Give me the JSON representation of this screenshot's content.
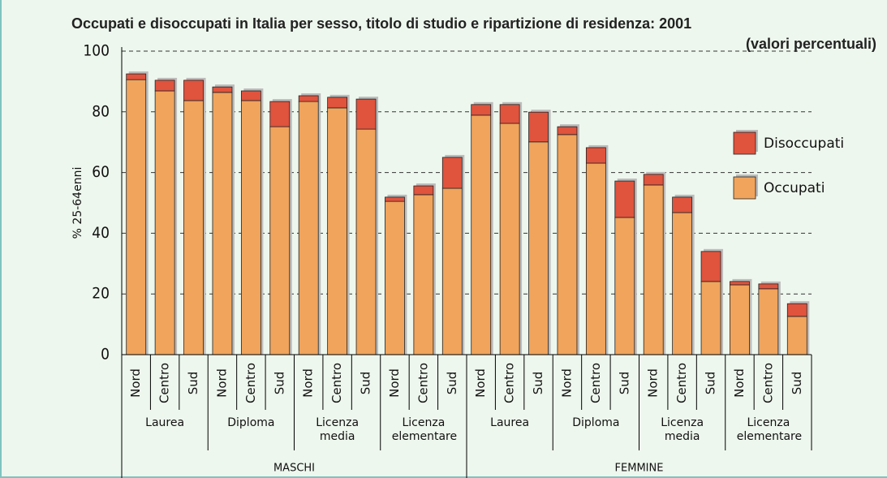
{
  "chart_data": {
    "type": "stacked-bar",
    "title": "Occupati e disoccupati in Italia per sesso, titolo di studio e ripartizione di residenza: 2001",
    "subtitle": "(valori percentuali)",
    "y_label": "% 25-64enni",
    "categories": [
      "Nord",
      "Centro",
      "Sud",
      "Nord",
      "Centro",
      "Sud",
      "Nord",
      "Centro",
      "Sud",
      "Nord",
      "Centro",
      "Sud",
      "Nord",
      "Centro",
      "Sud",
      "Nord",
      "Centro",
      "Sud",
      "Nord",
      "Centro",
      "Sud",
      "Nord",
      "Centro",
      "Sud"
    ],
    "groups": [
      "Laurea",
      "Diploma",
      "Licenza media",
      "Licenza elementare",
      "Laurea",
      "Diploma",
      "Licenza media",
      "Licenza elementare"
    ],
    "supergroups": [
      "MASCHI",
      "FEMMINE"
    ],
    "series": [
      {
        "name": "Occupati",
        "color": "#f0a45c",
        "values": [
          90.6,
          86.9,
          83.7,
          86.4,
          83.7,
          75.1,
          83.4,
          81.3,
          74.3,
          50.5,
          52.7,
          54.8,
          78.9,
          76.2,
          70.1,
          72.5,
          63.1,
          45.2,
          55.9,
          46.8,
          24.1,
          23.0,
          21.7,
          12.6
        ]
      },
      {
        "name": "Disoccupati",
        "color": "#e0533d",
        "values": [
          1.9,
          3.5,
          6.7,
          1.8,
          3.2,
          8.3,
          1.9,
          3.5,
          9.9,
          1.4,
          2.9,
          10.2,
          3.5,
          6.2,
          9.8,
          2.6,
          5.1,
          12.0,
          3.5,
          5.1,
          9.9,
          1.1,
          1.6,
          4.2
        ]
      }
    ],
    "ylim": [
      0,
      100
    ],
    "yticks": [
      0,
      20,
      40,
      60,
      80,
      100
    ],
    "grid": true
  }
}
